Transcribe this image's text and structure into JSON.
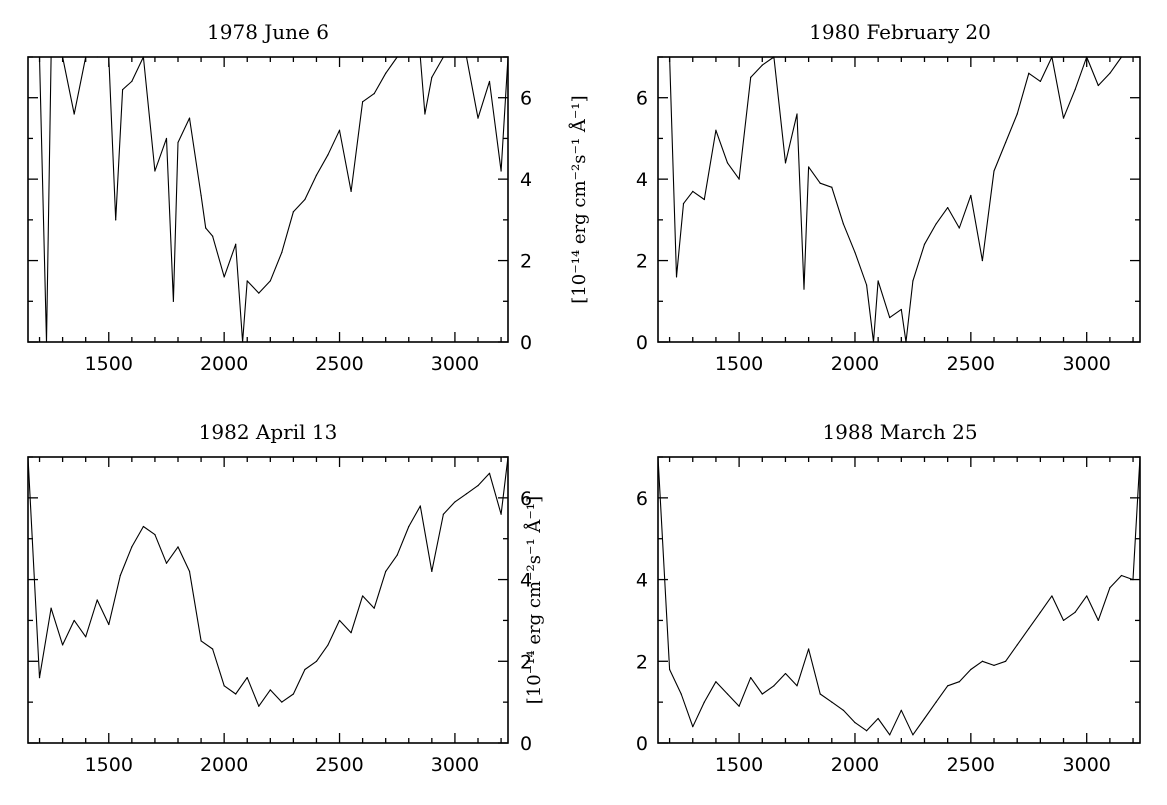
{
  "chart_data": [
    {
      "type": "line",
      "title": "1978 June 6",
      "xlim": [
        1150,
        3230
      ],
      "ylim": [
        0,
        7
      ],
      "xticks": [
        1500,
        2000,
        2500,
        3000
      ],
      "yticks": [
        0,
        2,
        4,
        6
      ],
      "ytick_side": "right",
      "ylabel": "",
      "x": [
        1150,
        1200,
        1230,
        1250,
        1300,
        1350,
        1400,
        1450,
        1500,
        1530,
        1560,
        1600,
        1650,
        1700,
        1750,
        1780,
        1800,
        1850,
        1900,
        1920,
        1950,
        2000,
        2050,
        2080,
        2100,
        2150,
        2200,
        2250,
        2300,
        2350,
        2400,
        2450,
        2500,
        2550,
        2600,
        2650,
        2700,
        2750,
        2800,
        2850,
        2870,
        2900,
        2950,
        3000,
        3050,
        3100,
        3150,
        3200,
        3230
      ],
      "values": [
        7,
        7,
        0,
        7,
        7,
        5.6,
        7,
        7,
        7,
        3,
        6.2,
        6.4,
        7,
        4.2,
        5,
        1,
        4.9,
        5.5,
        3.6,
        2.8,
        2.6,
        1.6,
        2.4,
        0,
        1.5,
        1.2,
        1.5,
        2.2,
        3.2,
        3.5,
        4.1,
        4.6,
        5.2,
        3.7,
        5.9,
        6.1,
        6.6,
        7,
        7,
        7,
        5.6,
        6.5,
        7,
        7,
        7,
        5.5,
        6.4,
        4.2,
        7
      ]
    },
    {
      "type": "line",
      "title": "1980 February 20",
      "xlim": [
        1150,
        3230
      ],
      "ylim": [
        0,
        7
      ],
      "xticks": [
        1500,
        2000,
        2500,
        3000
      ],
      "yticks": [
        0,
        2,
        4,
        6
      ],
      "ytick_side": "left",
      "ylabel": "[10⁻¹⁴ erg cm⁻²s⁻¹ Å⁻¹]",
      "x": [
        1150,
        1200,
        1230,
        1260,
        1300,
        1350,
        1400,
        1450,
        1500,
        1550,
        1600,
        1650,
        1700,
        1750,
        1780,
        1800,
        1850,
        1900,
        1950,
        2000,
        2050,
        2080,
        2100,
        2150,
        2200,
        2220,
        2250,
        2300,
        2350,
        2400,
        2450,
        2500,
        2550,
        2600,
        2650,
        2700,
        2750,
        2800,
        2850,
        2900,
        2950,
        3000,
        3050,
        3100,
        3150,
        3200,
        3230
      ],
      "values": [
        7,
        7,
        1.6,
        3.4,
        3.7,
        3.5,
        5.2,
        4.4,
        4,
        6.5,
        6.8,
        7,
        4.4,
        5.6,
        1.3,
        4.3,
        3.9,
        3.8,
        2.9,
        2.2,
        1.4,
        0,
        1.5,
        0.6,
        0.8,
        0,
        1.5,
        2.4,
        2.9,
        3.3,
        2.8,
        3.6,
        2,
        4.2,
        4.9,
        5.6,
        6.6,
        6.4,
        7,
        5.5,
        6.2,
        7,
        6.3,
        6.6,
        7,
        7,
        7
      ]
    },
    {
      "type": "line",
      "title": "1982 April 13",
      "xlim": [
        1150,
        3230
      ],
      "ylim": [
        0,
        7
      ],
      "xticks": [
        1500,
        2000,
        2500,
        3000
      ],
      "yticks": [
        0,
        2,
        4,
        6
      ],
      "ytick_side": "right",
      "ylabel": "[10⁻¹⁴ erg cm⁻²s⁻¹ Å⁻¹]",
      "x": [
        1150,
        1200,
        1250,
        1300,
        1350,
        1400,
        1450,
        1500,
        1550,
        1600,
        1650,
        1700,
        1750,
        1800,
        1850,
        1900,
        1950,
        2000,
        2050,
        2100,
        2150,
        2200,
        2250,
        2300,
        2350,
        2400,
        2450,
        2500,
        2550,
        2600,
        2650,
        2700,
        2750,
        2800,
        2850,
        2900,
        2950,
        3000,
        3050,
        3100,
        3150,
        3200,
        3230
      ],
      "values": [
        7,
        1.6,
        3.3,
        2.4,
        3,
        2.6,
        3.5,
        2.9,
        4.1,
        4.8,
        5.3,
        5.1,
        4.4,
        4.8,
        4.2,
        2.5,
        2.3,
        1.4,
        1.2,
        1.6,
        0.9,
        1.3,
        1,
        1.2,
        1.8,
        2,
        2.4,
        3,
        2.7,
        3.6,
        3.3,
        4.2,
        4.6,
        5.3,
        5.8,
        4.2,
        5.6,
        5.9,
        6.1,
        6.3,
        6.6,
        5.6,
        7
      ]
    },
    {
      "type": "line",
      "title": "1988 March 25",
      "xlim": [
        1150,
        3230
      ],
      "ylim": [
        0,
        7
      ],
      "xticks": [
        1500,
        2000,
        2500,
        3000
      ],
      "yticks": [
        0,
        2,
        4,
        6
      ],
      "ytick_side": "left",
      "ylabel": "",
      "x": [
        1150,
        1200,
        1250,
        1300,
        1350,
        1400,
        1450,
        1500,
        1550,
        1600,
        1650,
        1700,
        1750,
        1800,
        1850,
        1900,
        1950,
        2000,
        2050,
        2100,
        2150,
        2200,
        2250,
        2300,
        2350,
        2400,
        2450,
        2500,
        2550,
        2600,
        2650,
        2700,
        2750,
        2800,
        2850,
        2900,
        2950,
        3000,
        3050,
        3100,
        3150,
        3200,
        3230
      ],
      "values": [
        7,
        1.8,
        1.2,
        0.4,
        1,
        1.5,
        1.2,
        0.9,
        1.6,
        1.2,
        1.4,
        1.7,
        1.4,
        2.3,
        1.2,
        1,
        0.8,
        0.5,
        0.3,
        0.6,
        0.2,
        0.8,
        0.2,
        0.6,
        1,
        1.4,
        1.5,
        1.8,
        2,
        1.9,
        2,
        2.4,
        2.8,
        3.2,
        3.6,
        3,
        3.2,
        3.6,
        3,
        3.8,
        4.1,
        4,
        7
      ]
    }
  ]
}
